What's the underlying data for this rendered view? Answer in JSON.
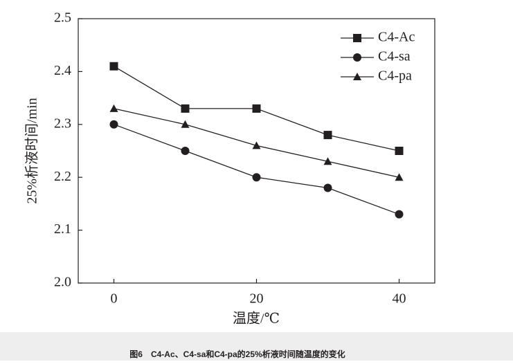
{
  "chart_data": {
    "type": "line",
    "x_label": "温度/℃",
    "y_label": "25%析液时间/min",
    "caption": "图6　C4-Ac、C4-sa和C4-pa的25%析液时间随温度的变化",
    "x": [
      0,
      10,
      20,
      30,
      40
    ],
    "xlim": [
      -5,
      45
    ],
    "xticks": [
      0,
      20,
      40
    ],
    "ylim": [
      2.0,
      2.5
    ],
    "yticks": [
      {
        "value": 2.0,
        "label": "2.0"
      },
      2.1,
      2.2,
      2.3,
      2.4,
      2.5
    ],
    "legend": "upper right",
    "series": [
      {
        "name": "C4-Ac",
        "color": "#231f20",
        "marker": "square",
        "values": [
          2.41,
          2.33,
          2.33,
          2.28,
          2.25
        ]
      },
      {
        "name": "C4-sa",
        "color": "#231f20",
        "marker": "circle",
        "values": [
          2.3,
          2.25,
          2.2,
          2.18,
          2.13
        ]
      },
      {
        "name": "C4-pa",
        "color": "#231f20",
        "marker": "triangle",
        "values": [
          2.33,
          2.3,
          2.26,
          2.23,
          2.2
        ]
      }
    ]
  }
}
